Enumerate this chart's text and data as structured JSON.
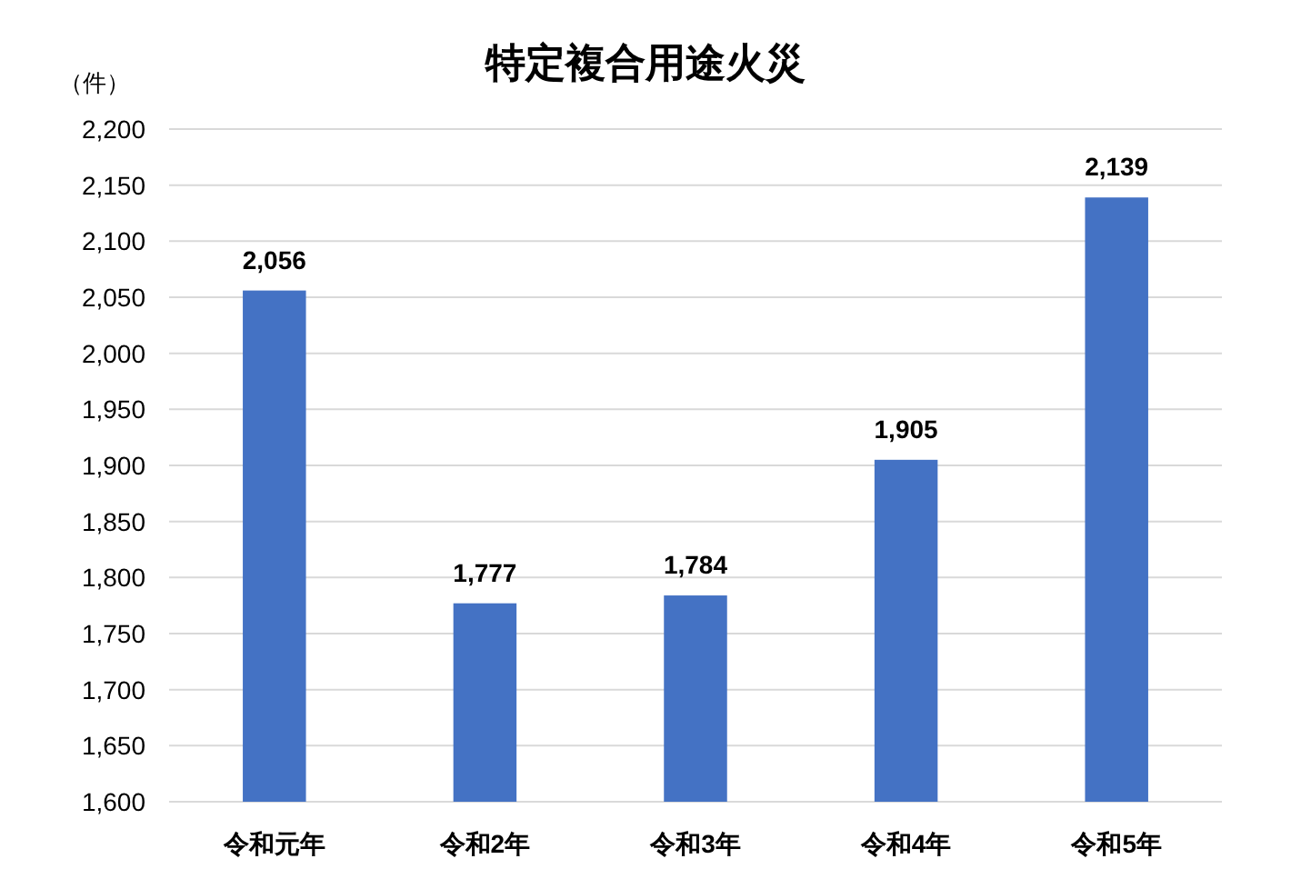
{
  "chart_data": {
    "type": "bar",
    "title": "特定複合用途火災",
    "ylabel": "（件）",
    "categories": [
      "令和元年",
      "令和2年",
      "令和3年",
      "令和4年",
      "令和5年"
    ],
    "values": [
      2056,
      1777,
      1784,
      1905,
      2139
    ],
    "value_labels": [
      "2,056",
      "1,777",
      "1,784",
      "1,905",
      "2,139"
    ],
    "color": "#4472c4",
    "ylim": [
      1600,
      2200
    ],
    "yticks": [
      {
        "value": 1600,
        "label": "1,600"
      },
      {
        "value": 1650,
        "label": "1,650"
      },
      {
        "value": 1700,
        "label": "1,700"
      },
      {
        "value": 1750,
        "label": "1,750"
      },
      {
        "value": 1800,
        "label": "1,800"
      },
      {
        "value": 1850,
        "label": "1,850"
      },
      {
        "value": 1900,
        "label": "1,900"
      },
      {
        "value": 1950,
        "label": "1,950"
      },
      {
        "value": 2000,
        "label": "2,000"
      },
      {
        "value": 2050,
        "label": "2,050"
      },
      {
        "value": 2100,
        "label": "2,100"
      },
      {
        "value": 2150,
        "label": "2,150"
      },
      {
        "value": 2200,
        "label": "2,200"
      }
    ],
    "grid": "y"
  }
}
